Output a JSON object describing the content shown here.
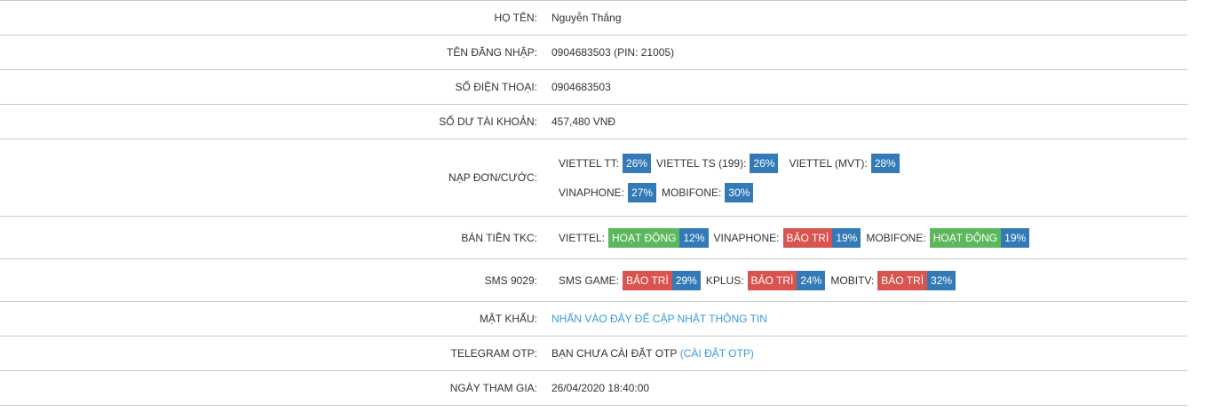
{
  "rows": {
    "name": {
      "label": "HỌ TÊN:",
      "value": "Nguyễn Thắng"
    },
    "login": {
      "label": "TÊN ĐĂNG NHẬP:",
      "value": "0904683503 (PIN: 21005)"
    },
    "phone": {
      "label": "SỐ ĐIỆN THOẠI:",
      "value": "0904683503"
    },
    "balance": {
      "label": "SỐ DƯ TÀI KHOẢN:",
      "value": "457,480 VNĐ"
    },
    "recharge": {
      "label": "NẠP ĐƠN/CƯỚC:",
      "items": [
        {
          "name": "VIETTEL TT:",
          "pct": "26%"
        },
        {
          "name": "VIETTEL TS (199):",
          "pct": "26%"
        },
        {
          "name": "VIETTEL (MVT):",
          "pct": "28%"
        },
        {
          "name": "VINAPHONE:",
          "pct": "27%"
        },
        {
          "name": "MOBIFONE:",
          "pct": "30%"
        }
      ]
    },
    "tkc": {
      "label": "BÁN TIỀN TKC:",
      "items": [
        {
          "name": "VIETTEL:",
          "status": "HOẠT ĐỘNG",
          "pct": "12%"
        },
        {
          "name": "VINAPHONE:",
          "status": "BẢO TRÌ",
          "pct": "19%"
        },
        {
          "name": "MOBIFONE:",
          "status": "HOẠT ĐỘNG",
          "pct": "19%"
        }
      ]
    },
    "sms": {
      "label": "SMS 9029:",
      "items": [
        {
          "name": "SMS GAME:",
          "status": "BẢO TRÌ",
          "pct": "29%"
        },
        {
          "name": "KPLUS:",
          "status": "BẢO TRÌ",
          "pct": "24%"
        },
        {
          "name": "MOBITV:",
          "status": "BẢO TRÌ",
          "pct": "32%"
        }
      ]
    },
    "password": {
      "label": "MẬT KHẨU:",
      "link": "NHẤN VÀO ĐÂY ĐỂ CẬP NHẬT THÔNG TIN"
    },
    "telegram": {
      "label": "TELEGRAM OTP:",
      "value": "BẠN CHƯA CÀI ĐẶT OTP",
      "link": "(CÀI ĐẶT OTP)"
    },
    "joined": {
      "label": "NGÀY THAM GIA:",
      "value": "26/04/2020 18:40:00"
    }
  },
  "colors": {
    "active": "#5cb85c",
    "maintenance": "#d9534f",
    "percent": "#337ab7",
    "link": "#3a9ad9"
  }
}
